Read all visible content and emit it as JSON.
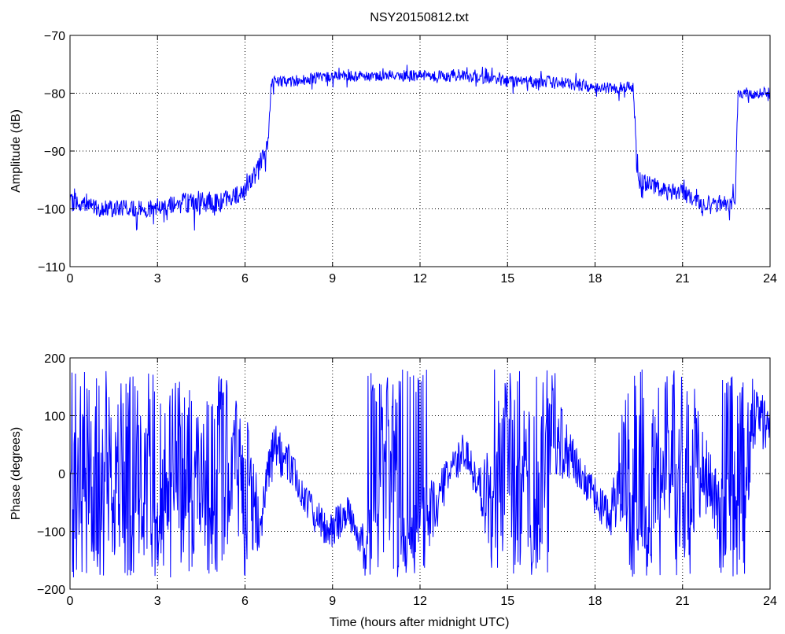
{
  "figure_title": "NSY20150812.txt",
  "trace_color": "#0000ff",
  "chart_data": [
    {
      "type": "line",
      "ylabel": "Amplitude (dB)",
      "xlabel": "",
      "xlim": [
        0,
        24
      ],
      "ylim": [
        -110,
        -70
      ],
      "xticks": [
        "0",
        "3",
        "6",
        "9",
        "12",
        "15",
        "18",
        "21",
        "24"
      ],
      "yticks": [
        "−110",
        "−100",
        "−90",
        "−80",
        "−70"
      ],
      "grid": true,
      "series": [
        {
          "trace": "noisy",
          "x": [
            0,
            0.5,
            1,
            2,
            3,
            3.5,
            4,
            4.5,
            5,
            5.5,
            6,
            6.3,
            6.6,
            6.8,
            6.9,
            7.5,
            9,
            10.5,
            12,
            13.5,
            15,
            16.5,
            18,
            19.3,
            19.5,
            20,
            20.5,
            21,
            21.5,
            22,
            22.8,
            22.9,
            23.5,
            24
          ],
          "values": [
            -99,
            -99,
            -100,
            -100,
            -100,
            -99,
            -99,
            -99,
            -99,
            -98,
            -97,
            -94,
            -91,
            -89,
            -78,
            -78,
            -77,
            -77,
            -77,
            -77,
            -78,
            -78,
            -79,
            -79,
            -95,
            -96,
            -97,
            -97,
            -99,
            -99,
            -99,
            -80,
            -80,
            -80
          ],
          "noise": [
            1.5,
            1.5,
            1.5,
            1.5,
            1.5,
            1.8,
            2,
            2,
            2,
            1.5,
            1.5,
            1.5,
            1.5,
            1.5,
            1,
            1,
            1,
            1,
            1,
            1,
            1,
            1,
            1,
            1,
            1.5,
            1.5,
            1.5,
            1.5,
            1.5,
            1.5,
            1.5,
            1,
            1,
            1
          ]
        }
      ]
    },
    {
      "type": "line",
      "ylabel": "Phase (degrees)",
      "xlabel": "Time (hours after midnight UTC)",
      "xlim": [
        0,
        24
      ],
      "ylim": [
        -200,
        200
      ],
      "xticks": [
        "0",
        "3",
        "6",
        "9",
        "12",
        "15",
        "18",
        "21",
        "24"
      ],
      "yticks": [
        "−200",
        "−100",
        "0",
        "100",
        "200"
      ],
      "grid": true,
      "series": [
        {
          "trace": "wrapped",
          "x": [
            0,
            0.5,
            1,
            1.5,
            2,
            2.5,
            3,
            3.5,
            4,
            4.5,
            5,
            5.5,
            6,
            6.5,
            7,
            7.5,
            8,
            8.5,
            9,
            9.5,
            10,
            10.5,
            11,
            11.5,
            12,
            12.5,
            13,
            13.5,
            14,
            14.5,
            15,
            15.5,
            16,
            16.5,
            17,
            17.5,
            18,
            18.5,
            19,
            19.5,
            20,
            20.5,
            21,
            21.5,
            22,
            22.5,
            23,
            23.5,
            24
          ],
          "values": [
            0,
            20,
            60,
            -20,
            20,
            -40,
            0,
            60,
            -40,
            20,
            -60,
            40,
            -20,
            -80,
            40,
            20,
            -40,
            -80,
            -100,
            -60,
            -120,
            -140,
            -100,
            -140,
            -120,
            -60,
            0,
            40,
            -20,
            -60,
            -100,
            -40,
            60,
            100,
            40,
            0,
            -40,
            -80,
            20,
            80,
            100,
            60,
            0,
            40,
            -20,
            -140,
            60,
            100,
            80
          ],
          "noise": [
            300,
            200,
            300,
            150,
            300,
            150,
            300,
            150,
            300,
            150,
            300,
            150,
            200,
            60,
            60,
            40,
            40,
            40,
            40,
            40,
            40,
            150,
            300,
            60,
            150,
            60,
            40,
            40,
            40,
            150,
            300,
            150,
            300,
            150,
            60,
            40,
            40,
            40,
            150,
            300,
            300,
            150,
            300,
            150,
            60,
            150,
            300,
            60,
            60
          ]
        }
      ]
    }
  ]
}
